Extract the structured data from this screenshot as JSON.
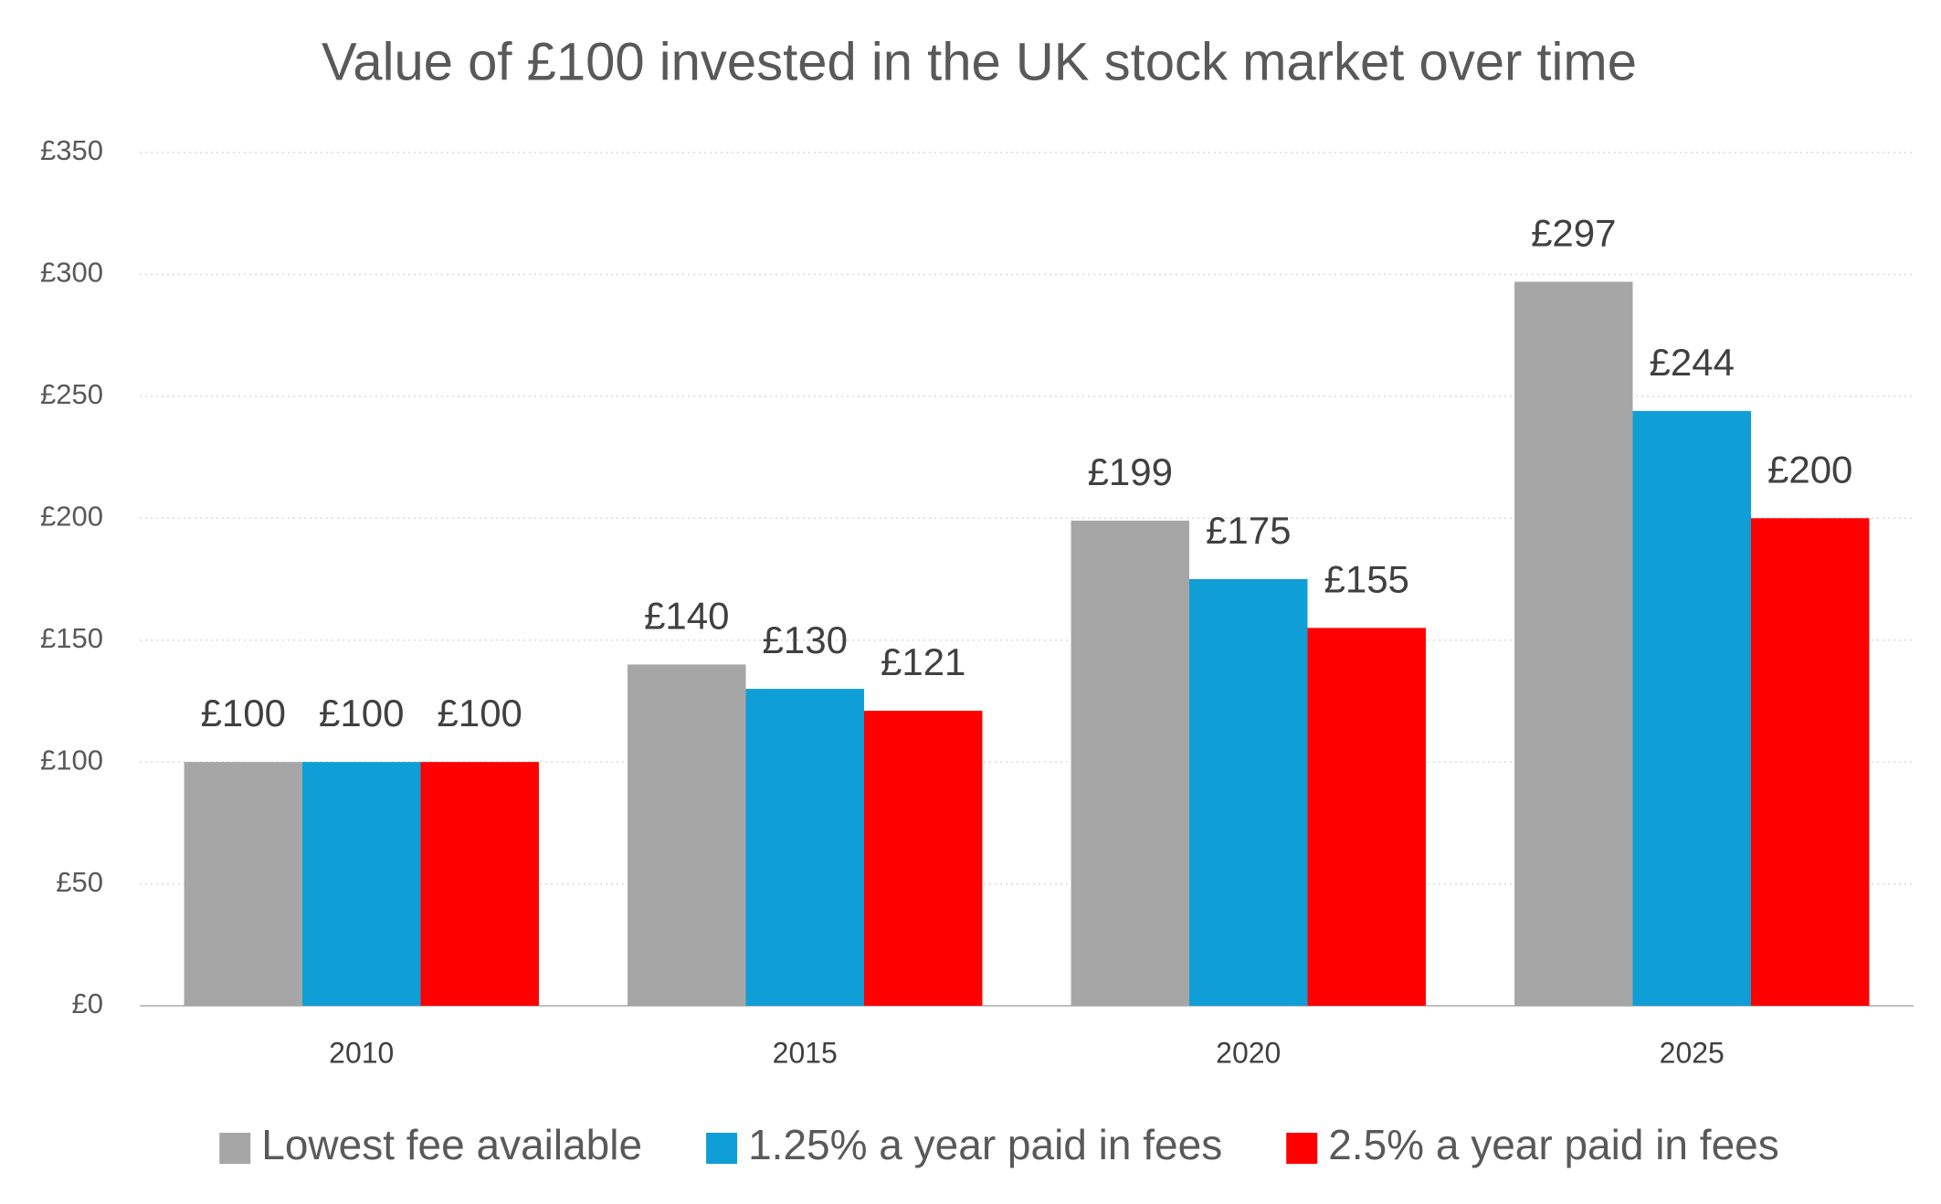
{
  "chart_data": {
    "type": "bar",
    "title": "Value of £100 invested in the UK stock market over time",
    "categories": [
      "2010",
      "2015",
      "2020",
      "2025"
    ],
    "series": [
      {
        "name": "Lowest fee available",
        "color": "#a6a6a6",
        "values": [
          100,
          140,
          199,
          297
        ],
        "value_labels": [
          "£100",
          "£140",
          "£199",
          "£297"
        ]
      },
      {
        "name": "1.25% a year paid in fees",
        "color": "#0f9ed5",
        "values": [
          100,
          130,
          175,
          244
        ],
        "value_labels": [
          "£100",
          "£130",
          "£175",
          "£244"
        ]
      },
      {
        "name": "2.5% a year paid in fees",
        "color": "#ff0000",
        "values": [
          100,
          121,
          155,
          200
        ],
        "value_labels": [
          "£100",
          "£121",
          "£155",
          "£200"
        ]
      }
    ],
    "ylim": [
      0,
      350
    ],
    "yticks": [
      {
        "value": 0,
        "label": "£0"
      },
      {
        "value": 50,
        "label": "£50"
      },
      {
        "value": 100,
        "label": "£100"
      },
      {
        "value": 150,
        "label": "£150"
      },
      {
        "value": 200,
        "label": "£200"
      },
      {
        "value": 250,
        "label": "£250"
      },
      {
        "value": 300,
        "label": "£300"
      },
      {
        "value": 350,
        "label": "£350"
      }
    ],
    "grid": true,
    "legend": "bottom"
  }
}
